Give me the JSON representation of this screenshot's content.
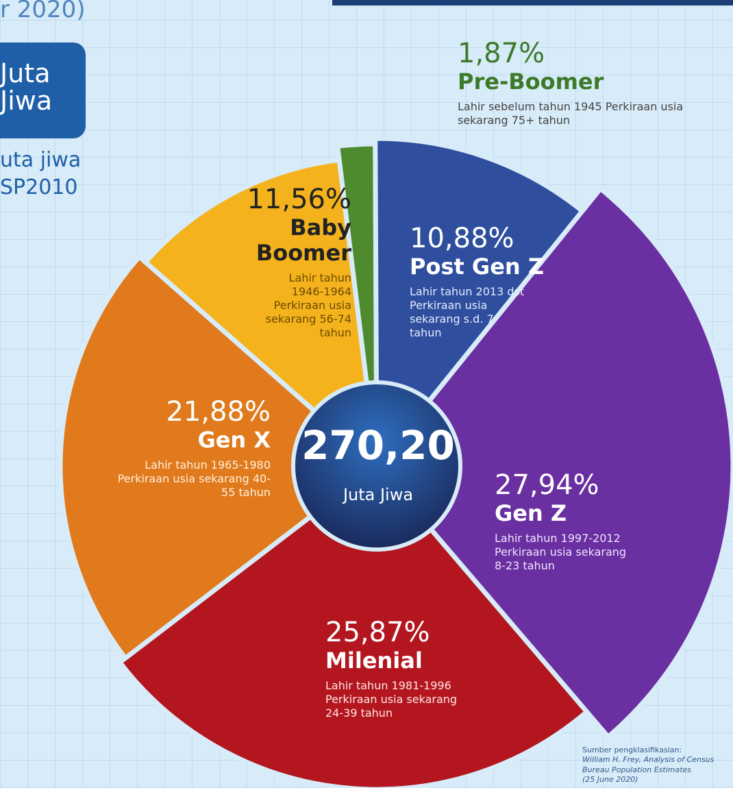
{
  "chart_data": {
    "type": "pie",
    "categories": [
      "Pre-Boomer",
      "Post Gen Z",
      "Gen Z",
      "Milenial",
      "Gen X",
      "Baby Boomer"
    ],
    "values": [
      1.87,
      10.88,
      27.94,
      25.87,
      21.88,
      11.56
    ],
    "value_labels": [
      "1,87%",
      "10,88%",
      "27,94%",
      "25,87%",
      "21,88%",
      "11,56%"
    ],
    "colors": [
      "#4e8a2e",
      "#2f4f9e",
      "#6a2fa0",
      "#b3161f",
      "#e07a1c",
      "#f4b31c"
    ],
    "descriptions": [
      "Lahir sebelum tahun 1945 Perkiraan usia sekarang 75+ tahun",
      "Lahir tahun 2013 dst Perkiraan usia sekarang s.d. 7 tahun",
      "Lahir tahun 1997-2012 Perkiraan usia sekarang 8-23 tahun",
      "Lahir tahun 1981-1996 Perkiraan usia sekarang 24-39 tahun",
      "Lahir tahun 1965-1980 Perkiraan usia sekarang 40-55 tahun",
      "Lahir tahun 1946-1964 Perkiraan usia sekarang 56-74 tahun"
    ],
    "center_value": "270,20",
    "center_label": "Juta Jiwa"
  },
  "side": {
    "fragment_top": "r 2020)",
    "box": "Juta Jiwa",
    "line1": "uta jiwa",
    "line2": "SP2010"
  },
  "source": [
    "Sumber pengklasifikasian:",
    "William H. Frey, Analysis of Census",
    "Bureau Population Estimates",
    "(25 June 2020)"
  ]
}
